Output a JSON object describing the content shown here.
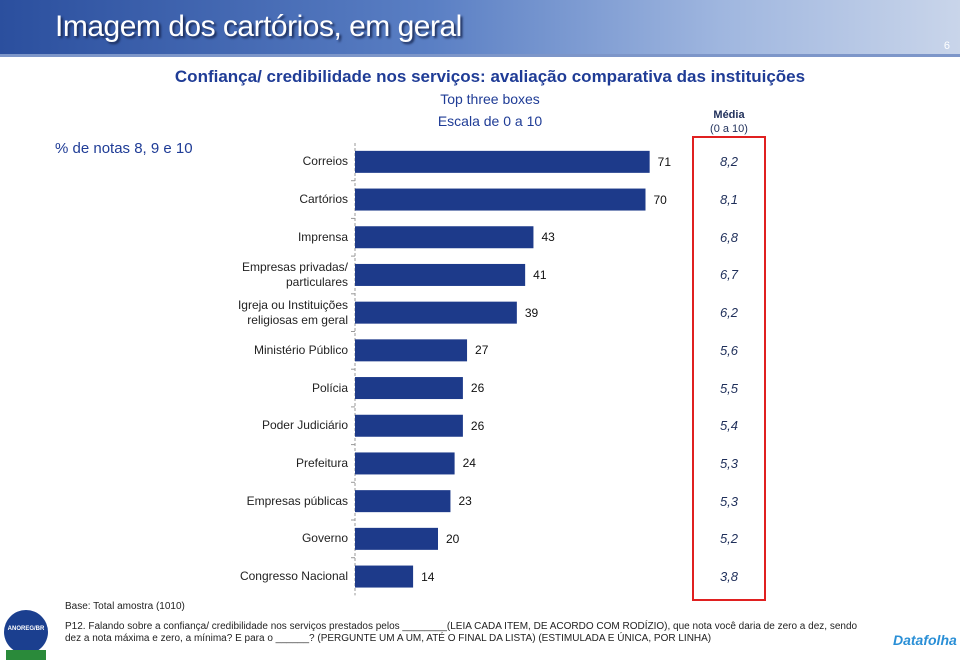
{
  "header": {
    "title": "Imagem dos cartórios, em geral",
    "page_number": "6"
  },
  "chart_data": {
    "type": "bar",
    "orientation": "horizontal",
    "title": "Confiança/ credibilidade nos serviços: avaliação comparativa  das instituições",
    "subtitle": "Top three boxes",
    "note": "Escala de 0 a 10",
    "axis_label": "% de notas 8, 9 e 10",
    "categories": [
      "Correios",
      "Cartórios",
      "Imprensa",
      "Empresas privadas/\nparticulares",
      "Igreja ou Instituições\nreligiosas em geral",
      "Ministério Público",
      "Polícia",
      "Poder Judiciário",
      "Prefeitura",
      "Empresas públicas",
      "Governo",
      "Congresso Nacional"
    ],
    "values": [
      71,
      70,
      43,
      41,
      39,
      27,
      26,
      26,
      24,
      23,
      20,
      14
    ],
    "color": "#1d3a8a",
    "xlim": [
      0,
      100
    ],
    "mean": {
      "title": "Média",
      "subtitle": "(0 a 10)",
      "values": [
        8.2,
        8.1,
        6.8,
        6.7,
        6.2,
        5.6,
        5.5,
        5.4,
        5.3,
        5.3,
        5.2,
        3.8
      ],
      "value_labels": [
        "8,2",
        "8,1",
        "6,8",
        "6,7",
        "6,2",
        "5,6",
        "5,5",
        "5,4",
        "5,3",
        "5,3",
        "5,2",
        "3,8"
      ],
      "box_color": "#e02020"
    }
  },
  "footer": {
    "base": "Base: Total amostra (1010)",
    "question": "P12. Falando sobre a confiança/ credibilidade nos serviços prestados pelos ________(LEIA CADA ITEM, DE ACORDO COM RODÍZIO), que nota você daria de zero a dez, sendo dez a nota máxima e zero, a mínima? E para o ______? (PERGUNTE UM A UM, ATÉ O FINAL DA LISTA) (ESTIMULADA E ÚNICA, POR LINHA)",
    "logo": "ANOREG/BR",
    "brand": "Datafolha"
  }
}
